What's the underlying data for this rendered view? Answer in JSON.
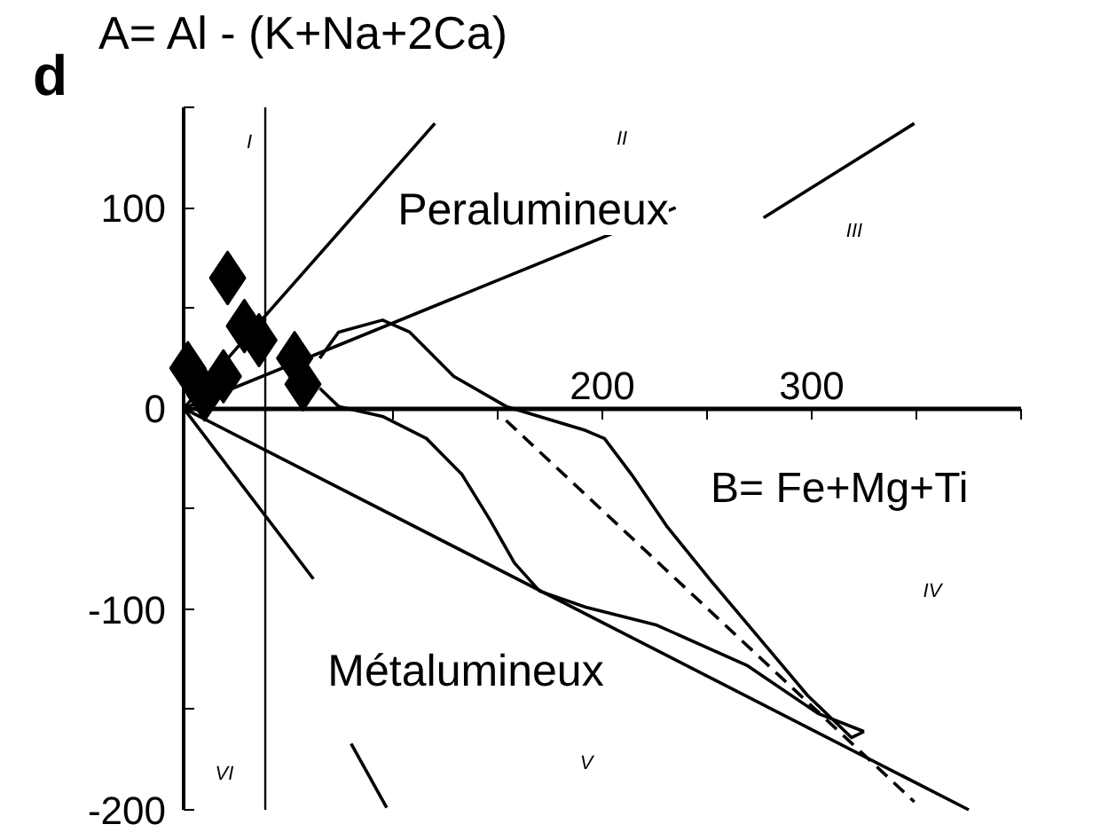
{
  "chart_data": {
    "type": "scatter",
    "title": "d",
    "ylabel": "A= Al - (K+Na+2Ca)",
    "xlabel": "B= Fe+Mg+Ti",
    "xlim": [
      0,
      400
    ],
    "ylim": [
      -200,
      150
    ],
    "xticks": [
      {
        "value": 100,
        "label": null
      },
      {
        "value": 150,
        "label": null
      },
      200,
      {
        "value": 250,
        "label": null
      },
      300,
      {
        "value": 350,
        "label": null
      },
      {
        "value": 400,
        "label": null
      }
    ],
    "yticks": [
      -200,
      {
        "value": -150,
        "label": null
      },
      -100,
      {
        "value": -50,
        "label": null
      },
      0,
      {
        "value": 50,
        "label": null
      },
      100,
      {
        "value": 150,
        "label": null
      }
    ],
    "grid": false,
    "ref_lines": [
      {
        "axis": "x",
        "value": 39,
        "color": "#000000"
      }
    ],
    "series": [
      {
        "marker": "diamond",
        "color": "#000000",
        "x": [
          21,
          29,
          36,
          19,
          2,
          10,
          53,
          57
        ],
        "values": [
          65,
          41,
          34,
          16,
          20,
          7,
          25,
          12
        ]
      },
      {
        "type": "line",
        "color": "#000000",
        "x": [
          0,
          120
        ],
        "values": [
          0,
          142
        ]
      },
      {
        "type": "line",
        "color": "#000000",
        "x": [
          0,
          235
        ],
        "values": [
          0,
          100
        ]
      },
      {
        "type": "line",
        "color": "#000000",
        "x": [
          277,
          349
        ],
        "values": [
          95,
          142
        ]
      },
      {
        "type": "line",
        "color": "#000000",
        "x": [
          0,
          375
        ],
        "values": [
          0,
          -200
        ]
      },
      {
        "type": "line",
        "color": "#000000",
        "x": [
          0,
          62
        ],
        "values": [
          0,
          -85
        ]
      },
      {
        "type": "line",
        "color": "#000000",
        "x": [
          80,
          97
        ],
        "values": [
          -167,
          -199
        ]
      },
      {
        "type": "line",
        "color": "#000000",
        "line_style": "dashed",
        "x": [
          154,
          349
        ],
        "values": [
          -6,
          -196
        ]
      },
      {
        "type": "line",
        "color": "#000000",
        "x": [
          65,
          74,
          95,
          108,
          129,
          154,
          192,
          201,
          214,
          231,
          252,
          273,
          298,
          319,
          325
        ],
        "values": [
          25,
          38,
          44,
          38,
          16,
          1,
          -11,
          -15,
          -33,
          -59,
          -86,
          -112,
          -143,
          -164,
          -161
        ]
      },
      {
        "type": "line",
        "color": "#000000",
        "x": [
          65,
          74,
          95,
          116,
          133,
          146,
          158,
          170,
          192,
          226,
          269,
          303,
          325
        ],
        "values": [
          10,
          1,
          -4,
          -15,
          -33,
          -55,
          -77,
          -91,
          -99,
          -108,
          -128,
          -152,
          -161
        ]
      }
    ],
    "annotations": [
      "Peralumineux",
      "Métalumineux",
      "I",
      "II",
      "III",
      "IV",
      "V",
      "VI"
    ]
  }
}
